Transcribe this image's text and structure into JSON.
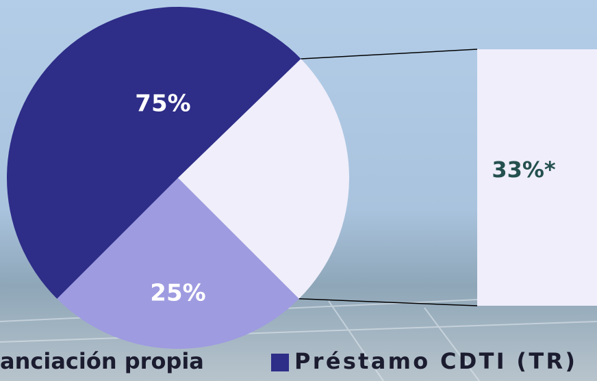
{
  "chart_data": {
    "type": "pie-of-bar",
    "categories": [
      "anciación propia",
      "Préstamo CDTI (TR)"
    ],
    "values": [
      25,
      75
    ],
    "value_labels": [
      "25%",
      "75%"
    ],
    "colors": [
      "#9e9be0",
      "#2e2d88"
    ],
    "breakout": {
      "of": 1,
      "value": 33,
      "label": "33%*",
      "color": "#efeefa"
    }
  }
}
